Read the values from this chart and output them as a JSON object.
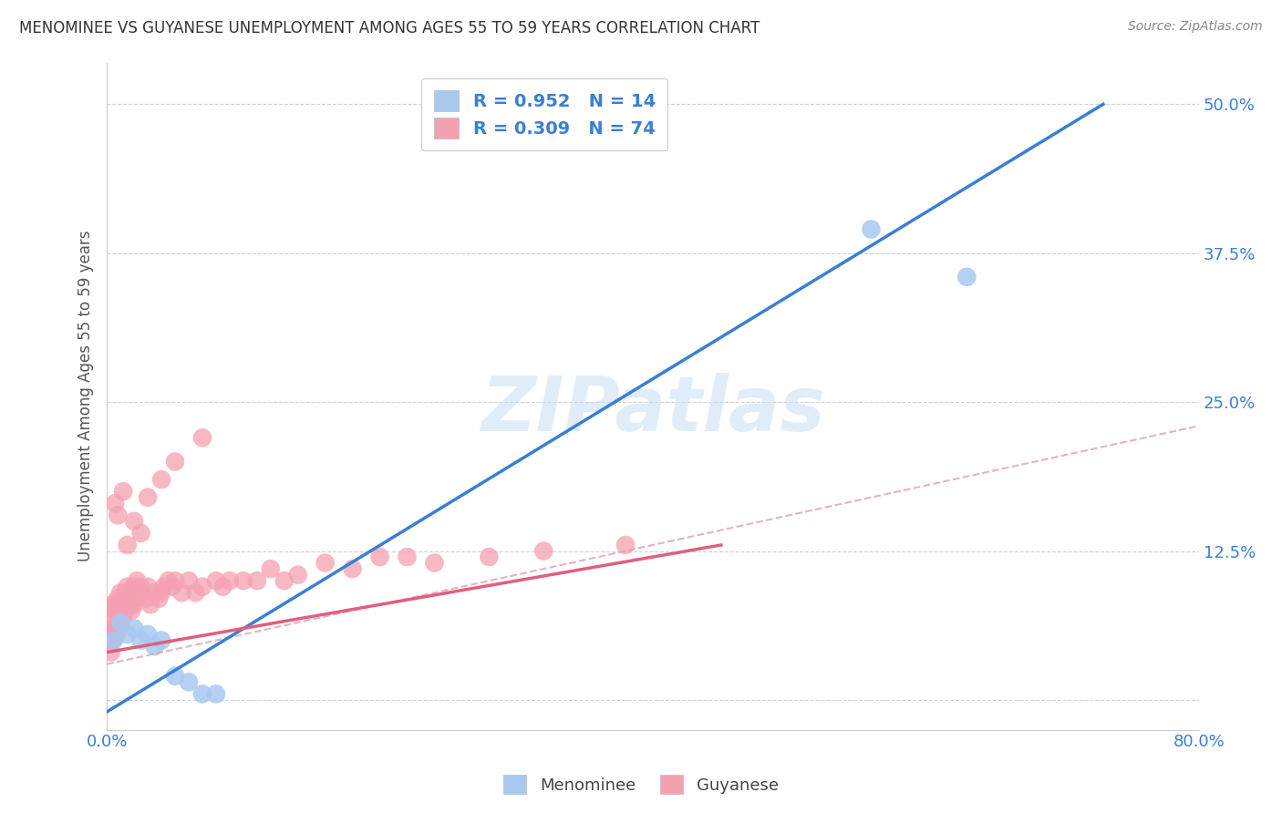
{
  "title": "MENOMINEE VS GUYANESE UNEMPLOYMENT AMONG AGES 55 TO 59 YEARS CORRELATION CHART",
  "source": "Source: ZipAtlas.com",
  "ylabel": "Unemployment Among Ages 55 to 59 years",
  "xlim": [
    0.0,
    0.8
  ],
  "ylim": [
    -0.025,
    0.535
  ],
  "xticks": [
    0.0,
    0.2,
    0.4,
    0.6,
    0.8
  ],
  "xticklabels": [
    "0.0%",
    "",
    "",
    "",
    "80.0%"
  ],
  "ytick_positions": [
    0.0,
    0.125,
    0.25,
    0.375,
    0.5
  ],
  "yticklabels": [
    "",
    "12.5%",
    "25.0%",
    "37.5%",
    "50.0%"
  ],
  "menominee_color": "#a8c8f0",
  "guyanese_color": "#f5a0b0",
  "menominee_R": 0.952,
  "menominee_N": 14,
  "guyanese_R": 0.309,
  "guyanese_N": 74,
  "menominee_line_color": "#3a7fd5",
  "guyanese_line_color": "#e0607a",
  "guyanese_dash_color": "#e0a0b0",
  "watermark": "ZIPatlas",
  "background_color": "#ffffff",
  "grid_color": "#cccccc",
  "menominee_scatter_x": [
    0.005,
    0.01,
    0.015,
    0.02,
    0.025,
    0.03,
    0.035,
    0.04,
    0.05,
    0.06,
    0.07,
    0.08,
    0.56,
    0.63
  ],
  "menominee_scatter_y": [
    0.05,
    0.065,
    0.055,
    0.06,
    0.05,
    0.055,
    0.045,
    0.05,
    0.02,
    0.015,
    0.005,
    0.005,
    0.395,
    0.355
  ],
  "guyanese_scatter_x": [
    0.001,
    0.002,
    0.003,
    0.003,
    0.004,
    0.004,
    0.005,
    0.005,
    0.006,
    0.006,
    0.007,
    0.007,
    0.008,
    0.008,
    0.009,
    0.01,
    0.01,
    0.01,
    0.012,
    0.012,
    0.013,
    0.013,
    0.015,
    0.015,
    0.016,
    0.017,
    0.018,
    0.018,
    0.02,
    0.02,
    0.022,
    0.022,
    0.024,
    0.025,
    0.028,
    0.03,
    0.032,
    0.035,
    0.038,
    0.04,
    0.042,
    0.045,
    0.048,
    0.05,
    0.055,
    0.06,
    0.065,
    0.07,
    0.08,
    0.085,
    0.09,
    0.1,
    0.11,
    0.12,
    0.13,
    0.14,
    0.16,
    0.18,
    0.2,
    0.22,
    0.24,
    0.28,
    0.32,
    0.38,
    0.006,
    0.008,
    0.012,
    0.015,
    0.02,
    0.025,
    0.03,
    0.04,
    0.05,
    0.07
  ],
  "guyanese_scatter_y": [
    0.05,
    0.06,
    0.04,
    0.07,
    0.05,
    0.08,
    0.055,
    0.075,
    0.06,
    0.08,
    0.055,
    0.075,
    0.06,
    0.085,
    0.07,
    0.065,
    0.08,
    0.09,
    0.07,
    0.085,
    0.075,
    0.09,
    0.08,
    0.095,
    0.085,
    0.08,
    0.075,
    0.09,
    0.08,
    0.095,
    0.085,
    0.1,
    0.09,
    0.095,
    0.085,
    0.095,
    0.08,
    0.09,
    0.085,
    0.09,
    0.095,
    0.1,
    0.095,
    0.1,
    0.09,
    0.1,
    0.09,
    0.095,
    0.1,
    0.095,
    0.1,
    0.1,
    0.1,
    0.11,
    0.1,
    0.105,
    0.115,
    0.11,
    0.12,
    0.12,
    0.115,
    0.12,
    0.125,
    0.13,
    0.165,
    0.155,
    0.175,
    0.13,
    0.15,
    0.14,
    0.17,
    0.185,
    0.2,
    0.22
  ],
  "menominee_line_x": [
    0.0,
    0.73
  ],
  "menominee_line_y": [
    -0.01,
    0.5
  ],
  "guyanese_solid_line_x": [
    0.0,
    0.45
  ],
  "guyanese_solid_line_y": [
    0.04,
    0.13
  ],
  "guyanese_dash_line_x": [
    0.0,
    0.8
  ],
  "guyanese_dash_line_y": [
    0.03,
    0.23
  ]
}
